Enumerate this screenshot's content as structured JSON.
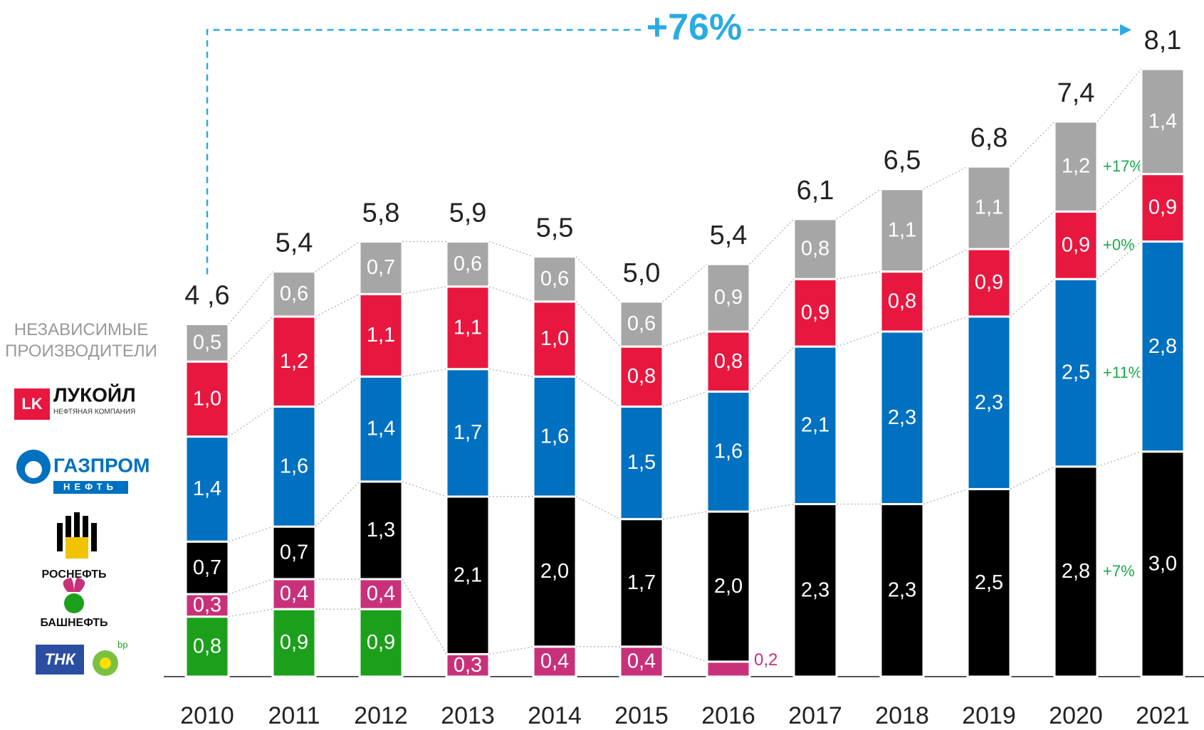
{
  "chart_data": {
    "type": "stacked_bar",
    "categories": [
      "2010",
      "2011",
      "2012",
      "2013",
      "2014",
      "2015",
      "2016",
      "2017",
      "2018",
      "2019",
      "2020",
      "2021"
    ],
    "series": [
      {
        "name": "ТНК",
        "logo_text": "bp",
        "color": "#1ca01c",
        "values": [
          0.8,
          0.9,
          0.9,
          null,
          null,
          null,
          null,
          null,
          null,
          null,
          null,
          null
        ],
        "value_labels": [
          "0,8",
          "0,9",
          "0,9",
          null,
          null,
          null,
          null,
          null,
          null,
          null,
          null,
          null
        ]
      },
      {
        "name": "БАШНЕФТЬ",
        "color": "#c8317a",
        "values": [
          0.3,
          0.4,
          0.4,
          0.3,
          0.4,
          0.4,
          0.2,
          null,
          null,
          null,
          null,
          null
        ],
        "value_labels": [
          "0,3",
          "0,4",
          "0,4",
          "0,3",
          "0,4",
          "0,4",
          "0,2",
          null,
          null,
          null,
          null,
          null
        ]
      },
      {
        "name": "РОСНЕФТЬ",
        "color": "#000000",
        "growth_label": "+7%",
        "values": [
          0.7,
          0.7,
          1.3,
          2.1,
          2.0,
          1.7,
          2.0,
          2.3,
          2.3,
          2.5,
          2.8,
          3.0
        ],
        "value_labels": [
          "0,7",
          "0,7",
          "1,3",
          "2,1",
          "2,0",
          "1,7",
          "2,0",
          "2,3",
          "2,3",
          "2,5",
          "2,8",
          "3,0"
        ]
      },
      {
        "name": "ГАЗПРОМ",
        "logo_text": "НЕФТЬ",
        "color": "#0070c0",
        "growth_label": "+11%",
        "values": [
          1.4,
          1.6,
          1.4,
          1.7,
          1.6,
          1.5,
          1.6,
          2.1,
          2.3,
          2.3,
          2.5,
          2.8
        ],
        "value_labels": [
          "1,4",
          "1,6",
          "1,4",
          "1,7",
          "1,6",
          "1,5",
          "1,6",
          "2,1",
          "2,3",
          "2,3",
          "2,5",
          "2,8"
        ]
      },
      {
        "name": "ЛУКОЙЛ",
        "logo_text": "НЕФТЯНАЯ КОМПАНИЯ",
        "color": "#e8173f",
        "growth_label": "+0%",
        "values": [
          1.0,
          1.2,
          1.1,
          1.1,
          1.0,
          0.8,
          0.8,
          0.9,
          0.8,
          0.9,
          0.9,
          0.9
        ],
        "value_labels": [
          "1,0",
          "1,2",
          "1,1",
          "1,1",
          "1,0",
          "0,8",
          "0,8",
          "0,9",
          "0,8",
          "0,9",
          "0,9",
          "0,9"
        ]
      },
      {
        "name": "НЕЗАВИСИМЫЕ ПРОИЗВОДИТЕЛИ",
        "color": "#a6a6a6",
        "growth_label": "+17%",
        "values": [
          0.5,
          0.6,
          0.7,
          0.6,
          0.6,
          0.6,
          0.9,
          0.8,
          1.1,
          1.1,
          1.2,
          1.4
        ],
        "value_labels": [
          "0,5",
          "0,6",
          "0,7",
          "0,6",
          "0,6",
          "0,6",
          "0,9",
          "0,8",
          "1,1",
          "1,1",
          "1,2",
          "1,4"
        ]
      }
    ],
    "totals": {
      "values": [
        4.6,
        5.4,
        5.8,
        5.9,
        5.5,
        5.0,
        5.4,
        6.1,
        6.5,
        6.8,
        7.4,
        8.1
      ],
      "value_labels": [
        "4 ,6",
        "5,4",
        "5,8",
        "5,9",
        "5,5",
        "5,0",
        "5,4",
        "6,1",
        "6,5",
        "6,8",
        "7,4",
        "8,1"
      ]
    },
    "growth_annotation": "+76%"
  }
}
